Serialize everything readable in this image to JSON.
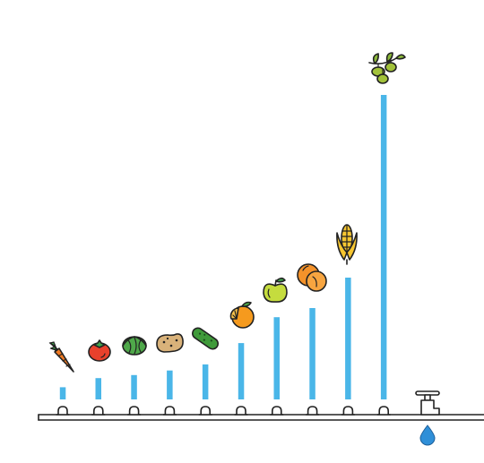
{
  "chart_data": {
    "type": "bar",
    "title": "",
    "xlabel": "",
    "ylabel": "",
    "ylim": [
      0,
      100
    ],
    "grid": false,
    "legend": "none",
    "bar_color": "#4ab6e8",
    "categories": [
      "carrot",
      "tomato",
      "cabbage",
      "potato",
      "cucumber",
      "orange",
      "apple",
      "peach",
      "corn",
      "olive"
    ],
    "values": [
      4,
      7,
      8,
      9.5,
      11.5,
      18.5,
      27,
      30,
      40,
      100
    ]
  },
  "icons": [
    "carrot-icon",
    "tomato-icon",
    "cabbage-icon",
    "potato-icon",
    "cucumber-icon",
    "orange-icon",
    "apple-icon",
    "peach-icon",
    "corn-icon",
    "olive-icon",
    "faucet-icon",
    "water-drop-icon"
  ],
  "colors": {
    "pipe": "#222222",
    "water": "#2f8fd8"
  }
}
